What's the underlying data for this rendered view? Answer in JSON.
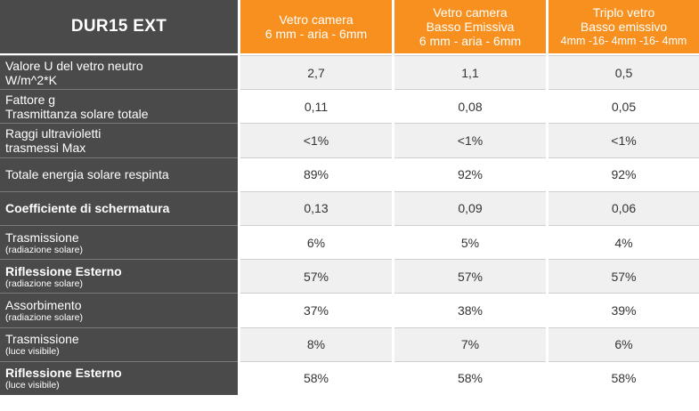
{
  "table": {
    "corner_label": "DUR15 EXT",
    "columns": [
      {
        "line1": "Vetro camera",
        "line2": "",
        "line3": "6 mm - aria - 6mm"
      },
      {
        "line1": "Vetro camera",
        "line2": "Basso Emissiva",
        "line3": "6 mm - aria - 6mm"
      },
      {
        "line1": "Triplo vetro",
        "line2": "Basso emissivo",
        "line3": "4mm -16- 4mm -16- 4mm"
      }
    ],
    "rows": [
      {
        "label": "Valore U del vetro neutro",
        "sub": "",
        "label2": "W/m^2*K",
        "values": [
          "2,7",
          "1,1",
          "0,5"
        ]
      },
      {
        "label": "Fattore g",
        "sub": "",
        "label2": "Trasmittanza solare totale",
        "values": [
          "0,11",
          "0,08",
          "0,05"
        ]
      },
      {
        "label": "Raggi ultravioletti",
        "sub": "",
        "label2": "trasmessi Max",
        "values": [
          "<1%",
          "<1%",
          "<1%"
        ]
      },
      {
        "label": "Totale energia solare respinta",
        "sub": "",
        "label2": "",
        "values": [
          "89%",
          "92%",
          "92%"
        ]
      },
      {
        "label": "Coefficiente di schermatura",
        "sub": "",
        "label2": "",
        "values": [
          "0,13",
          "0,09",
          "0,06"
        ]
      },
      {
        "label": "Trasmissione",
        "sub": "(radiazione solare)",
        "label2": "",
        "values": [
          "6%",
          "5%",
          "4%"
        ]
      },
      {
        "label": "Riflessione Esterno",
        "sub": "(radiazione solare)",
        "label2": "",
        "values": [
          "57%",
          "57%",
          "57%"
        ]
      },
      {
        "label": "Assorbimento",
        "sub": "(radiazione solare)",
        "label2": "",
        "values": [
          "37%",
          "38%",
          "39%"
        ]
      },
      {
        "label": "Trasmissione",
        "sub": "(luce visibile)",
        "label2": "",
        "values": [
          "8%",
          "7%",
          "6%"
        ]
      },
      {
        "label": "Riflessione Esterno",
        "sub": "(luce visibile)",
        "label2": "",
        "values": [
          "58%",
          "58%",
          "58%"
        ]
      }
    ]
  },
  "colors": {
    "header_orange": "#f7901e",
    "label_gray": "#4a4a4a",
    "alt_row": "#f0f0f0"
  }
}
